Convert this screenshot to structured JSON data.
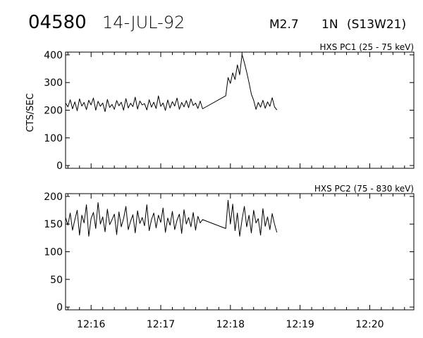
{
  "header": {
    "event_id": "04580",
    "date": "14-JUL-92",
    "flare_class": "M2.7",
    "importance": "1N",
    "location": "(S13W21)"
  },
  "chart_data": [
    {
      "type": "line",
      "title": "HXS PC1 (25 - 75 keV)",
      "ylabel": "CTS/SEC",
      "xlabel": "",
      "xlim": [
        "12:15:38",
        "12:20:38"
      ],
      "ylim": [
        -10,
        410
      ],
      "y_ticks": [
        0,
        100,
        200,
        300,
        400
      ],
      "x_ticks": [
        "12:16",
        "12:17",
        "12:18",
        "12:19",
        "12:20"
      ],
      "series": [
        {
          "x": [
            "12:15:38",
            "12:15:40",
            "12:15:42",
            "12:15:44",
            "12:15:46",
            "12:15:48",
            "12:15:50",
            "12:15:52",
            "12:15:54",
            "12:15:56",
            "12:15:58",
            "12:16:00",
            "12:16:02",
            "12:16:04",
            "12:16:06",
            "12:16:08",
            "12:16:10",
            "12:16:12",
            "12:16:14",
            "12:16:16",
            "12:16:18",
            "12:16:20",
            "12:16:22",
            "12:16:24",
            "12:16:26",
            "12:16:28",
            "12:16:30",
            "12:16:32",
            "12:16:34",
            "12:16:36",
            "12:16:38",
            "12:16:40",
            "12:16:42",
            "12:16:44",
            "12:16:46",
            "12:16:48",
            "12:16:50",
            "12:16:52",
            "12:16:54",
            "12:16:56",
            "12:16:58",
            "12:17:00",
            "12:17:02",
            "12:17:04",
            "12:17:06",
            "12:17:08",
            "12:17:10",
            "12:17:12",
            "12:17:14",
            "12:17:16",
            "12:17:18",
            "12:17:20",
            "12:17:22",
            "12:17:24",
            "12:17:26",
            "12:17:28",
            "12:17:30",
            "12:17:32",
            "12:17:34",
            "12:17:36",
            "12:17:56",
            "12:17:58",
            "12:18:00",
            "12:18:02",
            "12:18:04",
            "12:18:06",
            "12:18:08",
            "12:18:10",
            "12:18:12",
            "12:18:14",
            "12:18:16",
            "12:18:18",
            "12:18:20",
            "12:18:22",
            "12:18:24",
            "12:18:26",
            "12:18:28",
            "12:18:30",
            "12:18:32",
            "12:18:34",
            "12:18:36",
            "12:18:38",
            "12:18:40"
          ],
          "y": [
            226,
            212,
            238,
            205,
            230,
            198,
            241,
            215,
            228,
            202,
            236,
            219,
            244,
            200,
            232,
            214,
            226,
            195,
            239,
            210,
            221,
            203,
            235,
            216,
            229,
            200,
            242,
            208,
            225,
            213,
            247,
            204,
            233,
            219,
            224,
            201,
            238,
            211,
            229,
            206,
            252,
            214,
            226,
            199,
            237,
            208,
            231,
            215,
            244,
            203,
            228,
            212,
            235,
            209,
            241,
            217,
            226,
            206,
            233,
            205,
            252,
            318,
            297,
            335,
            311,
            364,
            328,
            401,
            372,
            338,
            300,
            258,
            236,
            203,
            228,
            211,
            236,
            207,
            230,
            214,
            245,
            212,
            201
          ],
          "gap_note": ""
        }
      ]
    },
    {
      "type": "line",
      "title": "HXS PC2 (75 - 830 keV)",
      "ylabel": "",
      "xlabel": "",
      "xlim": [
        "12:15:38",
        "12:20:38"
      ],
      "ylim": [
        -5,
        205
      ],
      "y_ticks": [
        0,
        50,
        100,
        150,
        200
      ],
      "x_ticks": [
        "12:16",
        "12:17",
        "12:18",
        "12:19",
        "12:20"
      ],
      "series": [
        {
          "x": [
            "12:15:38",
            "12:15:40",
            "12:15:42",
            "12:15:44",
            "12:15:46",
            "12:15:48",
            "12:15:50",
            "12:15:52",
            "12:15:54",
            "12:15:56",
            "12:15:58",
            "12:16:00",
            "12:16:02",
            "12:16:04",
            "12:16:06",
            "12:16:08",
            "12:16:10",
            "12:16:12",
            "12:16:14",
            "12:16:16",
            "12:16:18",
            "12:16:20",
            "12:16:22",
            "12:16:24",
            "12:16:26",
            "12:16:28",
            "12:16:30",
            "12:16:32",
            "12:16:34",
            "12:16:36",
            "12:16:38",
            "12:16:40",
            "12:16:42",
            "12:16:44",
            "12:16:46",
            "12:16:48",
            "12:16:50",
            "12:16:52",
            "12:16:54",
            "12:16:56",
            "12:16:58",
            "12:17:00",
            "12:17:02",
            "12:17:04",
            "12:17:06",
            "12:17:08",
            "12:17:10",
            "12:17:12",
            "12:17:14",
            "12:17:16",
            "12:17:18",
            "12:17:20",
            "12:17:22",
            "12:17:24",
            "12:17:26",
            "12:17:28",
            "12:17:30",
            "12:17:32",
            "12:17:34",
            "12:17:36",
            "12:17:56",
            "12:17:58",
            "12:18:00",
            "12:18:02",
            "12:18:04",
            "12:18:06",
            "12:18:08",
            "12:18:10",
            "12:18:12",
            "12:18:14",
            "12:18:16",
            "12:18:18",
            "12:18:20",
            "12:18:22",
            "12:18:24",
            "12:18:26",
            "12:18:28",
            "12:18:30",
            "12:18:32",
            "12:18:34",
            "12:18:36",
            "12:18:38",
            "12:18:40"
          ],
          "y": [
            162,
            148,
            170,
            139,
            158,
            175,
            130,
            166,
            152,
            185,
            128,
            160,
            171,
            142,
            189,
            150,
            163,
            136,
            177,
            149,
            158,
            168,
            131,
            172,
            145,
            160,
            182,
            140,
            155,
            167,
            134,
            174,
            151,
            162,
            147,
            185,
            138,
            158,
            170,
            143,
            166,
            153,
            179,
            135,
            161,
            148,
            173,
            140,
            157,
            168,
            133,
            176,
            150,
            162,
            145,
            171,
            139,
            164,
            152,
            158,
            142,
            193,
            150,
            186,
            138,
            170,
            128,
            158,
            182,
            145,
            166,
            134,
            175,
            152,
            160,
            130,
            178,
            146,
            163,
            140,
            169,
            150,
            135
          ]
        }
      ]
    }
  ]
}
